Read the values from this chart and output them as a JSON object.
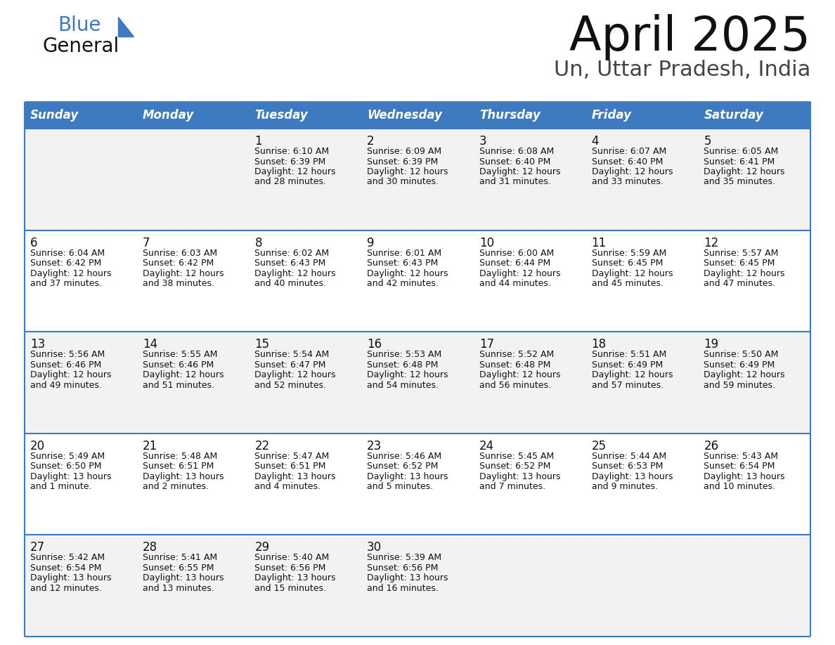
{
  "title": "April 2025",
  "subtitle": "Un, Uttar Pradesh, India",
  "header_bg_color": "#3d7abf",
  "header_text_color": "#ffffff",
  "cell_bg_row0": "#f2f2f2",
  "cell_bg_row1": "#ffffff",
  "cell_bg_row2": "#f2f2f2",
  "cell_bg_row3": "#ffffff",
  "cell_bg_row4": "#f2f2f2",
  "day_names": [
    "Sunday",
    "Monday",
    "Tuesday",
    "Wednesday",
    "Thursday",
    "Friday",
    "Saturday"
  ],
  "days": [
    {
      "day": 1,
      "col": 2,
      "row": 0,
      "sunrise": "6:10 AM",
      "sunset": "6:39 PM",
      "daylight_line1": "Daylight: 12 hours",
      "daylight_line2": "and 28 minutes."
    },
    {
      "day": 2,
      "col": 3,
      "row": 0,
      "sunrise": "6:09 AM",
      "sunset": "6:39 PM",
      "daylight_line1": "Daylight: 12 hours",
      "daylight_line2": "and 30 minutes."
    },
    {
      "day": 3,
      "col": 4,
      "row": 0,
      "sunrise": "6:08 AM",
      "sunset": "6:40 PM",
      "daylight_line1": "Daylight: 12 hours",
      "daylight_line2": "and 31 minutes."
    },
    {
      "day": 4,
      "col": 5,
      "row": 0,
      "sunrise": "6:07 AM",
      "sunset": "6:40 PM",
      "daylight_line1": "Daylight: 12 hours",
      "daylight_line2": "and 33 minutes."
    },
    {
      "day": 5,
      "col": 6,
      "row": 0,
      "sunrise": "6:05 AM",
      "sunset": "6:41 PM",
      "daylight_line1": "Daylight: 12 hours",
      "daylight_line2": "and 35 minutes."
    },
    {
      "day": 6,
      "col": 0,
      "row": 1,
      "sunrise": "6:04 AM",
      "sunset": "6:42 PM",
      "daylight_line1": "Daylight: 12 hours",
      "daylight_line2": "and 37 minutes."
    },
    {
      "day": 7,
      "col": 1,
      "row": 1,
      "sunrise": "6:03 AM",
      "sunset": "6:42 PM",
      "daylight_line1": "Daylight: 12 hours",
      "daylight_line2": "and 38 minutes."
    },
    {
      "day": 8,
      "col": 2,
      "row": 1,
      "sunrise": "6:02 AM",
      "sunset": "6:43 PM",
      "daylight_line1": "Daylight: 12 hours",
      "daylight_line2": "and 40 minutes."
    },
    {
      "day": 9,
      "col": 3,
      "row": 1,
      "sunrise": "6:01 AM",
      "sunset": "6:43 PM",
      "daylight_line1": "Daylight: 12 hours",
      "daylight_line2": "and 42 minutes."
    },
    {
      "day": 10,
      "col": 4,
      "row": 1,
      "sunrise": "6:00 AM",
      "sunset": "6:44 PM",
      "daylight_line1": "Daylight: 12 hours",
      "daylight_line2": "and 44 minutes."
    },
    {
      "day": 11,
      "col": 5,
      "row": 1,
      "sunrise": "5:59 AM",
      "sunset": "6:45 PM",
      "daylight_line1": "Daylight: 12 hours",
      "daylight_line2": "and 45 minutes."
    },
    {
      "day": 12,
      "col": 6,
      "row": 1,
      "sunrise": "5:57 AM",
      "sunset": "6:45 PM",
      "daylight_line1": "Daylight: 12 hours",
      "daylight_line2": "and 47 minutes."
    },
    {
      "day": 13,
      "col": 0,
      "row": 2,
      "sunrise": "5:56 AM",
      "sunset": "6:46 PM",
      "daylight_line1": "Daylight: 12 hours",
      "daylight_line2": "and 49 minutes."
    },
    {
      "day": 14,
      "col": 1,
      "row": 2,
      "sunrise": "5:55 AM",
      "sunset": "6:46 PM",
      "daylight_line1": "Daylight: 12 hours",
      "daylight_line2": "and 51 minutes."
    },
    {
      "day": 15,
      "col": 2,
      "row": 2,
      "sunrise": "5:54 AM",
      "sunset": "6:47 PM",
      "daylight_line1": "Daylight: 12 hours",
      "daylight_line2": "and 52 minutes."
    },
    {
      "day": 16,
      "col": 3,
      "row": 2,
      "sunrise": "5:53 AM",
      "sunset": "6:48 PM",
      "daylight_line1": "Daylight: 12 hours",
      "daylight_line2": "and 54 minutes."
    },
    {
      "day": 17,
      "col": 4,
      "row": 2,
      "sunrise": "5:52 AM",
      "sunset": "6:48 PM",
      "daylight_line1": "Daylight: 12 hours",
      "daylight_line2": "and 56 minutes."
    },
    {
      "day": 18,
      "col": 5,
      "row": 2,
      "sunrise": "5:51 AM",
      "sunset": "6:49 PM",
      "daylight_line1": "Daylight: 12 hours",
      "daylight_line2": "and 57 minutes."
    },
    {
      "day": 19,
      "col": 6,
      "row": 2,
      "sunrise": "5:50 AM",
      "sunset": "6:49 PM",
      "daylight_line1": "Daylight: 12 hours",
      "daylight_line2": "and 59 minutes."
    },
    {
      "day": 20,
      "col": 0,
      "row": 3,
      "sunrise": "5:49 AM",
      "sunset": "6:50 PM",
      "daylight_line1": "Daylight: 13 hours",
      "daylight_line2": "and 1 minute."
    },
    {
      "day": 21,
      "col": 1,
      "row": 3,
      "sunrise": "5:48 AM",
      "sunset": "6:51 PM",
      "daylight_line1": "Daylight: 13 hours",
      "daylight_line2": "and 2 minutes."
    },
    {
      "day": 22,
      "col": 2,
      "row": 3,
      "sunrise": "5:47 AM",
      "sunset": "6:51 PM",
      "daylight_line1": "Daylight: 13 hours",
      "daylight_line2": "and 4 minutes."
    },
    {
      "day": 23,
      "col": 3,
      "row": 3,
      "sunrise": "5:46 AM",
      "sunset": "6:52 PM",
      "daylight_line1": "Daylight: 13 hours",
      "daylight_line2": "and 5 minutes."
    },
    {
      "day": 24,
      "col": 4,
      "row": 3,
      "sunrise": "5:45 AM",
      "sunset": "6:52 PM",
      "daylight_line1": "Daylight: 13 hours",
      "daylight_line2": "and 7 minutes."
    },
    {
      "day": 25,
      "col": 5,
      "row": 3,
      "sunrise": "5:44 AM",
      "sunset": "6:53 PM",
      "daylight_line1": "Daylight: 13 hours",
      "daylight_line2": "and 9 minutes."
    },
    {
      "day": 26,
      "col": 6,
      "row": 3,
      "sunrise": "5:43 AM",
      "sunset": "6:54 PM",
      "daylight_line1": "Daylight: 13 hours",
      "daylight_line2": "and 10 minutes."
    },
    {
      "day": 27,
      "col": 0,
      "row": 4,
      "sunrise": "5:42 AM",
      "sunset": "6:54 PM",
      "daylight_line1": "Daylight: 13 hours",
      "daylight_line2": "and 12 minutes."
    },
    {
      "day": 28,
      "col": 1,
      "row": 4,
      "sunrise": "5:41 AM",
      "sunset": "6:55 PM",
      "daylight_line1": "Daylight: 13 hours",
      "daylight_line2": "and 13 minutes."
    },
    {
      "day": 29,
      "col": 2,
      "row": 4,
      "sunrise": "5:40 AM",
      "sunset": "6:56 PM",
      "daylight_line1": "Daylight: 13 hours",
      "daylight_line2": "and 15 minutes."
    },
    {
      "day": 30,
      "col": 3,
      "row": 4,
      "sunrise": "5:39 AM",
      "sunset": "6:56 PM",
      "daylight_line1": "Daylight: 13 hours",
      "daylight_line2": "and 16 minutes."
    }
  ],
  "logo_color_general": "#111111",
  "logo_color_blue": "#3d7abf",
  "logo_triangle_color": "#3d7abf",
  "title_color": "#111111",
  "subtitle_color": "#444444",
  "grid_line_color": "#3d7abf",
  "text_color": "#111111",
  "n_rows": 5,
  "n_cols": 7
}
